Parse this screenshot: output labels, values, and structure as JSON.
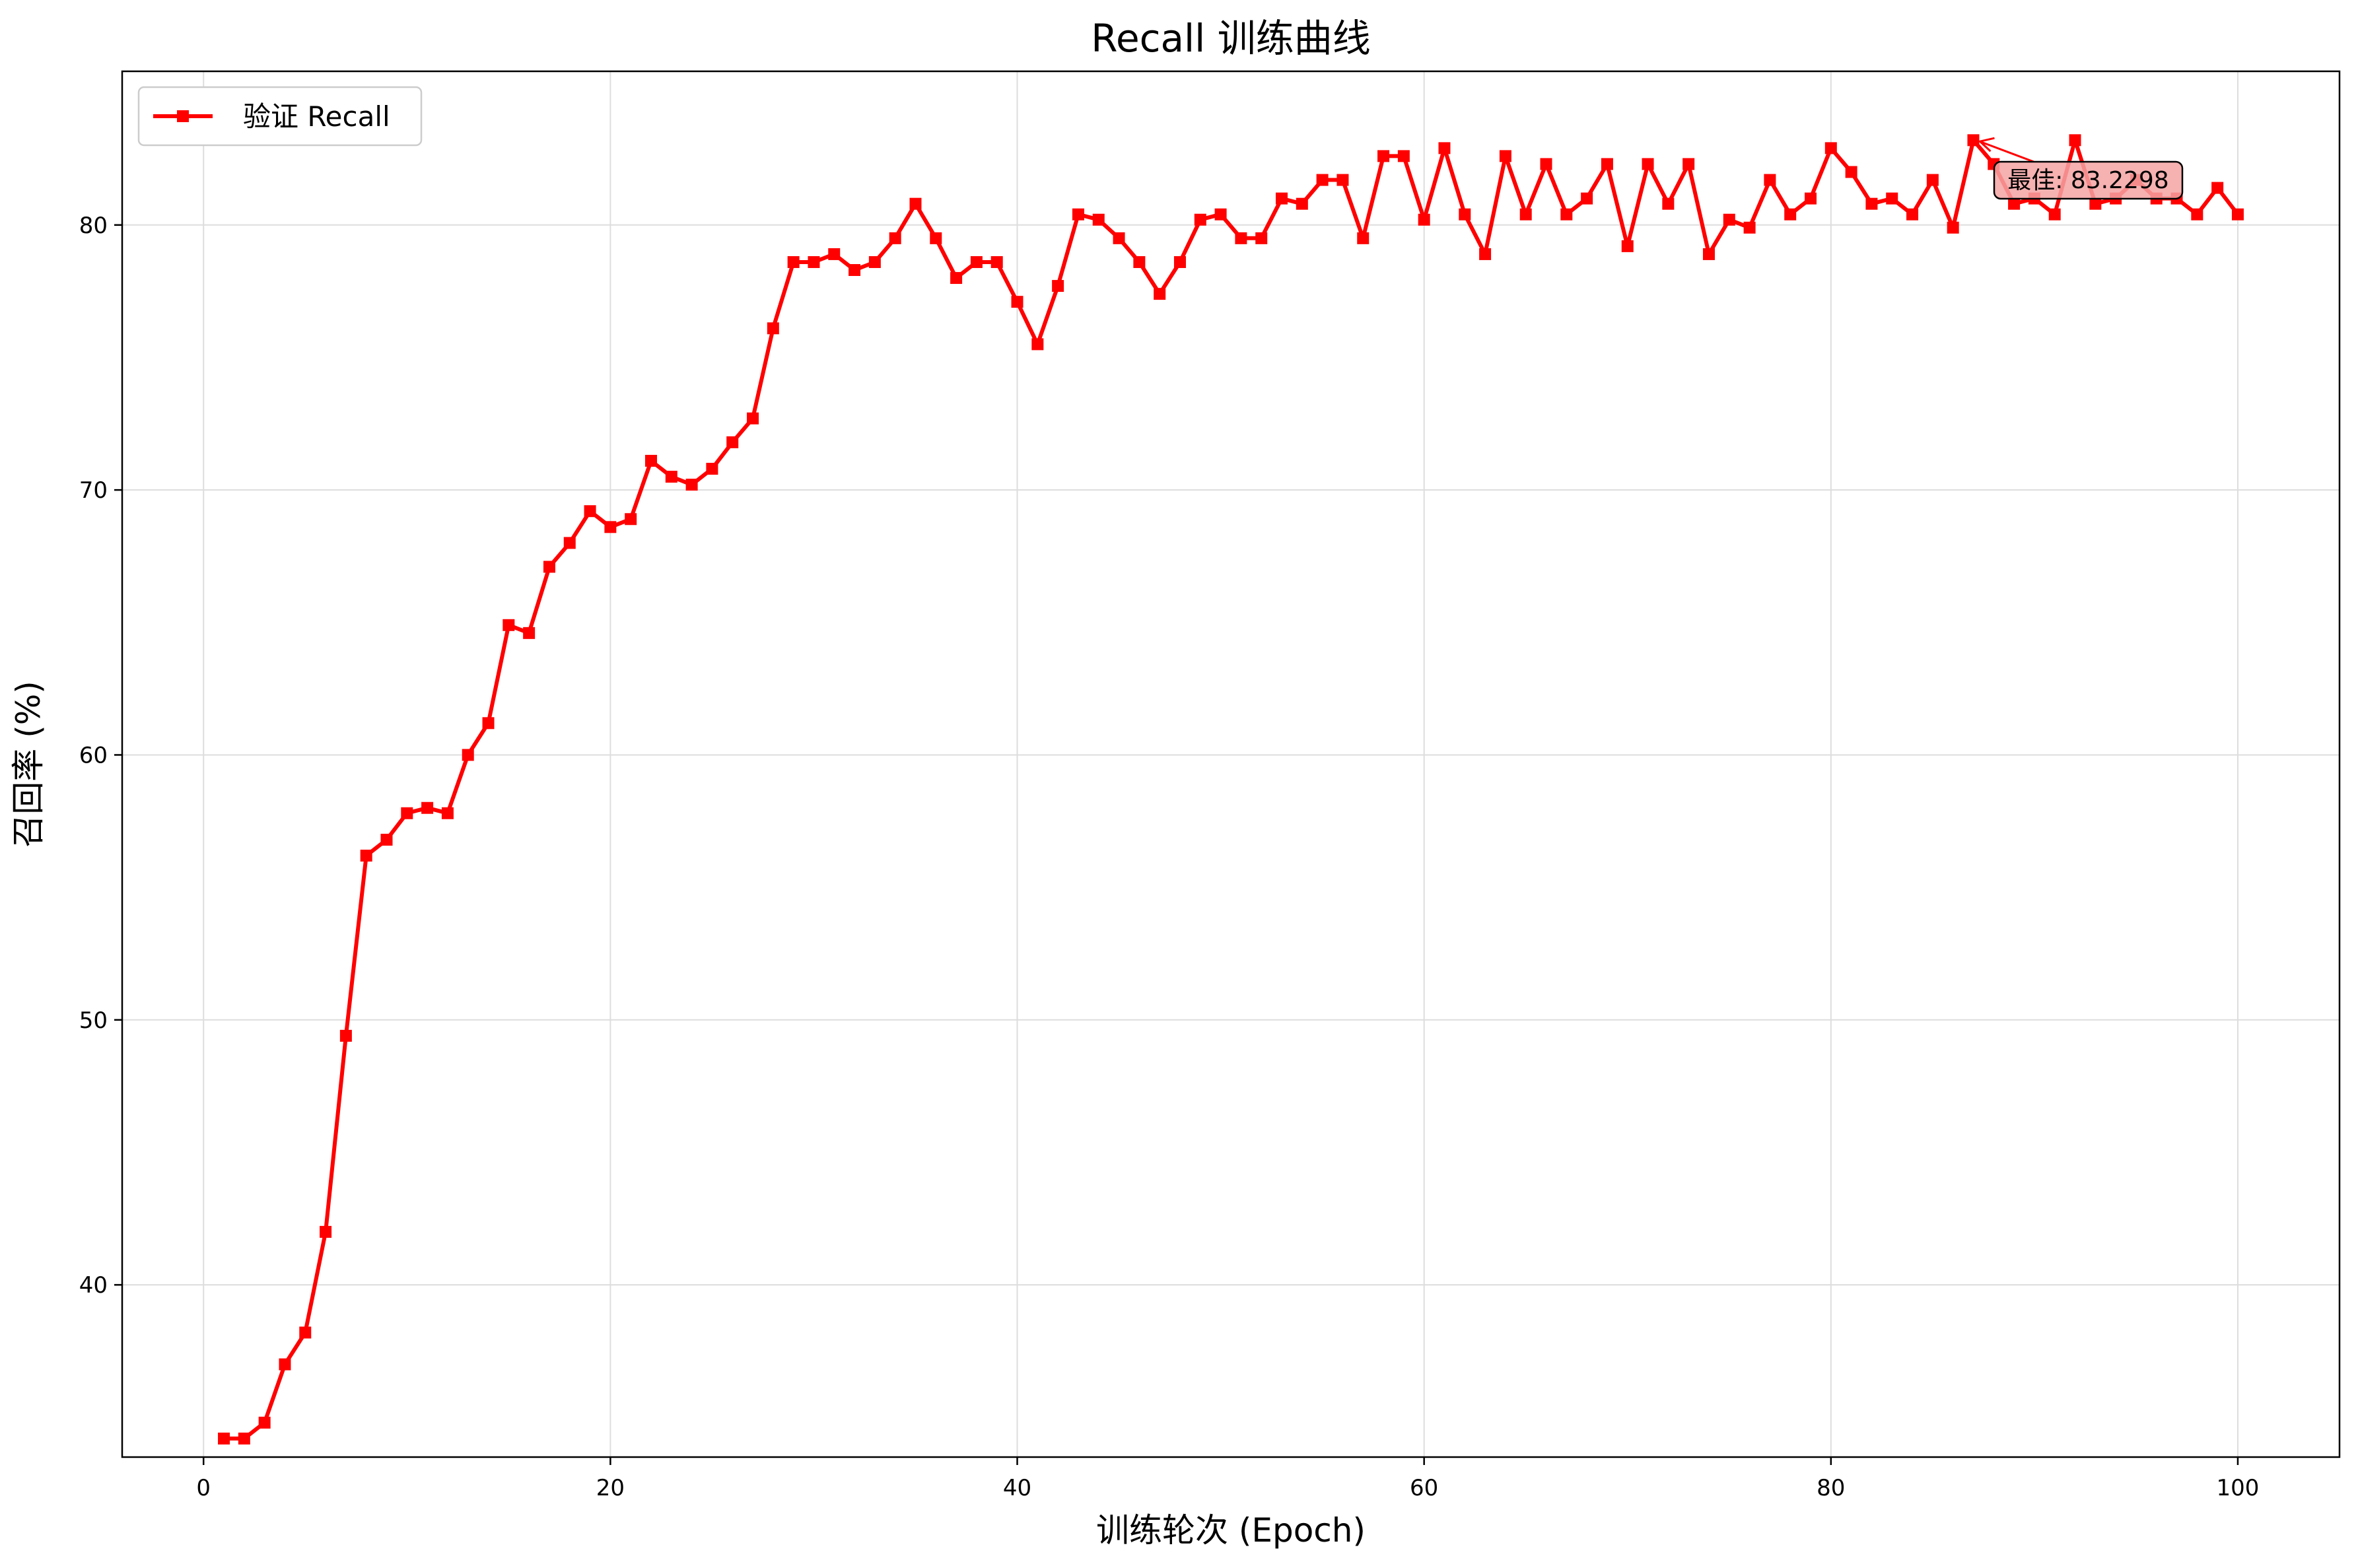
{
  "chart_data": {
    "type": "line",
    "title": "Recall 训练曲线",
    "xlabel": "训练轮次 (Epoch)",
    "ylabel": "召回率 (%)",
    "xlim": [
      -4,
      105
    ],
    "ylim": [
      33.5,
      85.8
    ],
    "xticks": [
      0,
      20,
      40,
      60,
      80,
      100
    ],
    "yticks": [
      40,
      50,
      60,
      70,
      80
    ],
    "grid": true,
    "legend_position": "top-left",
    "colors": {
      "series": "#ff0000",
      "annotation_box": "#f4a3a3"
    },
    "series": [
      {
        "name": "验证 Recall",
        "marker": "square",
        "x": [
          1,
          2,
          3,
          4,
          5,
          6,
          7,
          8,
          9,
          10,
          11,
          12,
          13,
          14,
          15,
          16,
          17,
          18,
          19,
          20,
          21,
          22,
          23,
          24,
          25,
          26,
          27,
          28,
          29,
          30,
          31,
          32,
          33,
          34,
          35,
          36,
          37,
          38,
          39,
          40,
          41,
          42,
          43,
          44,
          45,
          46,
          47,
          48,
          49,
          50,
          51,
          52,
          53,
          54,
          55,
          56,
          57,
          58,
          59,
          60,
          61,
          62,
          63,
          64,
          65,
          66,
          67,
          68,
          69,
          70,
          71,
          72,
          73,
          74,
          75,
          76,
          77,
          78,
          79,
          80,
          81,
          82,
          83,
          84,
          85,
          86,
          87,
          88,
          89,
          90,
          91,
          92,
          93,
          94,
          95,
          96,
          97,
          98,
          99,
          100
        ],
        "y": [
          34.2,
          34.2,
          34.8,
          37.0,
          38.2,
          42.0,
          49.4,
          56.2,
          56.8,
          57.8,
          58.0,
          57.8,
          60.0,
          61.2,
          64.9,
          64.6,
          67.1,
          68.0,
          69.2,
          68.6,
          68.9,
          71.1,
          70.5,
          70.2,
          70.8,
          71.8,
          72.7,
          76.1,
          78.6,
          78.6,
          78.9,
          78.3,
          78.6,
          79.5,
          80.8,
          79.5,
          78.0,
          78.6,
          78.6,
          77.1,
          75.5,
          77.7,
          80.4,
          80.2,
          79.5,
          78.6,
          77.4,
          78.6,
          80.2,
          80.4,
          79.5,
          79.5,
          81.0,
          80.8,
          81.7,
          81.7,
          79.5,
          82.6,
          82.6,
          80.2,
          82.9,
          80.4,
          78.9,
          82.6,
          80.4,
          82.3,
          80.4,
          81.0,
          82.3,
          79.2,
          82.3,
          80.8,
          82.3,
          78.9,
          80.2,
          79.9,
          81.7,
          80.4,
          81.0,
          82.9,
          82.0,
          80.8,
          81.0,
          80.4,
          81.7,
          79.9,
          83.2,
          82.3,
          80.8,
          81.0,
          80.4,
          83.2,
          80.8,
          81.0,
          81.7,
          81.0,
          81.0,
          80.4,
          81.4,
          80.4
        ]
      }
    ],
    "annotation": {
      "text": "最佳: 83.2298",
      "x": 87,
      "y": 83.2298
    }
  }
}
